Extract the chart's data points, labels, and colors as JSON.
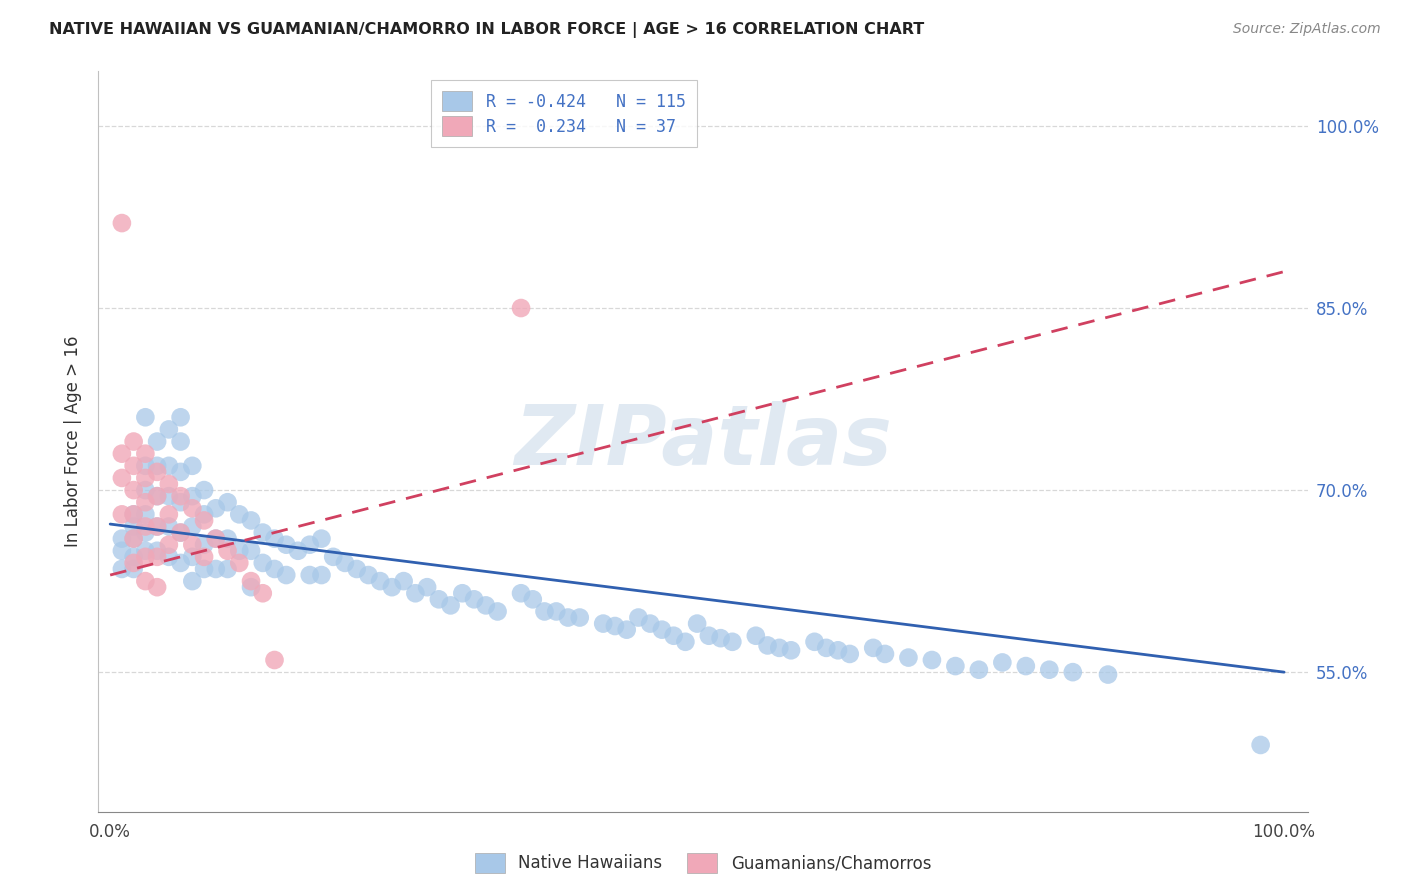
{
  "title": "NATIVE HAWAIIAN VS GUAMANIAN/CHAMORRO IN LABOR FORCE | AGE > 16 CORRELATION CHART",
  "source": "Source: ZipAtlas.com",
  "ylabel": "In Labor Force | Age > 16",
  "xlim": [
    -0.01,
    1.02
  ],
  "ylim": [
    0.435,
    1.045
  ],
  "x_ticks": [
    0.0,
    1.0
  ],
  "x_tick_labels": [
    "0.0%",
    "100.0%"
  ],
  "y_ticks_right": [
    0.55,
    0.7,
    0.85,
    1.0
  ],
  "y_tick_labels_right": [
    "55.0%",
    "70.0%",
    "85.0%",
    "100.0%"
  ],
  "blue_color": "#a8c8e8",
  "pink_color": "#f0a8b8",
  "blue_line_color": "#3060b0",
  "pink_line_color": "#d04060",
  "R_blue": -0.424,
  "N_blue": 115,
  "R_pink": 0.234,
  "N_pink": 37,
  "blue_line_x0": 0.0,
  "blue_line_y0": 0.672,
  "blue_line_x1": 1.0,
  "blue_line_y1": 0.55,
  "pink_line_x0": 0.0,
  "pink_line_y0": 0.63,
  "pink_line_x1": 1.0,
  "pink_line_y1": 0.88,
  "blue_pts_x": [
    0.01,
    0.01,
    0.01,
    0.02,
    0.02,
    0.02,
    0.02,
    0.02,
    0.03,
    0.03,
    0.03,
    0.03,
    0.03,
    0.03,
    0.04,
    0.04,
    0.04,
    0.04,
    0.04,
    0.05,
    0.05,
    0.05,
    0.05,
    0.05,
    0.06,
    0.06,
    0.06,
    0.06,
    0.06,
    0.06,
    0.07,
    0.07,
    0.07,
    0.07,
    0.07,
    0.08,
    0.08,
    0.08,
    0.08,
    0.09,
    0.09,
    0.09,
    0.1,
    0.1,
    0.1,
    0.11,
    0.11,
    0.12,
    0.12,
    0.12,
    0.13,
    0.13,
    0.14,
    0.14,
    0.15,
    0.15,
    0.16,
    0.17,
    0.17,
    0.18,
    0.18,
    0.19,
    0.2,
    0.21,
    0.22,
    0.23,
    0.24,
    0.25,
    0.26,
    0.27,
    0.28,
    0.29,
    0.3,
    0.31,
    0.32,
    0.33,
    0.35,
    0.36,
    0.37,
    0.38,
    0.39,
    0.4,
    0.42,
    0.43,
    0.44,
    0.45,
    0.46,
    0.47,
    0.48,
    0.49,
    0.5,
    0.51,
    0.52,
    0.53,
    0.55,
    0.56,
    0.57,
    0.58,
    0.6,
    0.61,
    0.62,
    0.63,
    0.65,
    0.66,
    0.68,
    0.7,
    0.72,
    0.74,
    0.76,
    0.78,
    0.8,
    0.82,
    0.85,
    0.98
  ],
  "blue_pts_y": [
    0.66,
    0.65,
    0.635,
    0.68,
    0.67,
    0.66,
    0.645,
    0.635,
    0.76,
    0.72,
    0.7,
    0.68,
    0.665,
    0.65,
    0.74,
    0.72,
    0.695,
    0.67,
    0.65,
    0.75,
    0.72,
    0.695,
    0.67,
    0.645,
    0.76,
    0.74,
    0.715,
    0.69,
    0.665,
    0.64,
    0.72,
    0.695,
    0.67,
    0.645,
    0.625,
    0.7,
    0.68,
    0.655,
    0.635,
    0.685,
    0.66,
    0.635,
    0.69,
    0.66,
    0.635,
    0.68,
    0.65,
    0.675,
    0.65,
    0.62,
    0.665,
    0.64,
    0.66,
    0.635,
    0.655,
    0.63,
    0.65,
    0.655,
    0.63,
    0.66,
    0.63,
    0.645,
    0.64,
    0.635,
    0.63,
    0.625,
    0.62,
    0.625,
    0.615,
    0.62,
    0.61,
    0.605,
    0.615,
    0.61,
    0.605,
    0.6,
    0.615,
    0.61,
    0.6,
    0.6,
    0.595,
    0.595,
    0.59,
    0.588,
    0.585,
    0.595,
    0.59,
    0.585,
    0.58,
    0.575,
    0.59,
    0.58,
    0.578,
    0.575,
    0.58,
    0.572,
    0.57,
    0.568,
    0.575,
    0.57,
    0.568,
    0.565,
    0.57,
    0.565,
    0.562,
    0.56,
    0.555,
    0.552,
    0.558,
    0.555,
    0.552,
    0.55,
    0.548,
    0.49
  ],
  "pink_pts_x": [
    0.01,
    0.01,
    0.01,
    0.01,
    0.02,
    0.02,
    0.02,
    0.02,
    0.02,
    0.02,
    0.03,
    0.03,
    0.03,
    0.03,
    0.03,
    0.03,
    0.04,
    0.04,
    0.04,
    0.04,
    0.04,
    0.05,
    0.05,
    0.05,
    0.06,
    0.06,
    0.07,
    0.07,
    0.08,
    0.08,
    0.09,
    0.1,
    0.11,
    0.12,
    0.13,
    0.14,
    0.35
  ],
  "pink_pts_y": [
    0.92,
    0.73,
    0.71,
    0.68,
    0.74,
    0.72,
    0.7,
    0.68,
    0.66,
    0.64,
    0.73,
    0.71,
    0.69,
    0.67,
    0.645,
    0.625,
    0.715,
    0.695,
    0.67,
    0.645,
    0.62,
    0.705,
    0.68,
    0.655,
    0.695,
    0.665,
    0.685,
    0.655,
    0.675,
    0.645,
    0.66,
    0.65,
    0.64,
    0.625,
    0.615,
    0.56,
    0.85
  ],
  "watermark_text": "ZIPatlas",
  "grid_color": "#d8d8d8",
  "spine_color": "#c0c0c0"
}
